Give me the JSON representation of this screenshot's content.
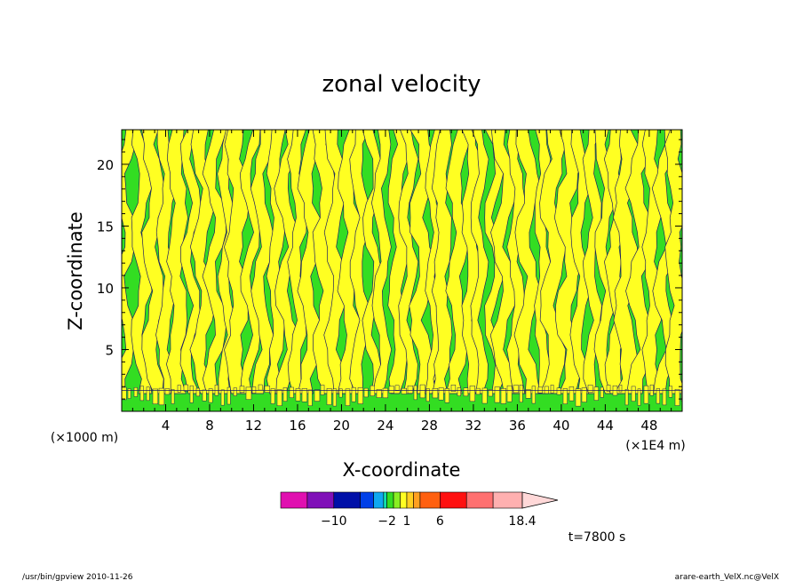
{
  "chart_data": {
    "type": "heatmap",
    "title": "zonal velocity",
    "xlabel": "X-coordinate",
    "ylabel": "Z-coordinate",
    "x_unit": "(×1E4 m)",
    "y_unit": "(×1000 m)",
    "xlim": [
      0,
      51
    ],
    "ylim": [
      0,
      22.8
    ],
    "x_ticks": [
      4,
      8,
      12,
      16,
      20,
      24,
      28,
      32,
      36,
      40,
      44,
      48
    ],
    "y_ticks": [
      5,
      10,
      15,
      20
    ],
    "dominant_fill_colors": [
      "#33dd22",
      "#ffff22"
    ],
    "colorbar": {
      "levels": [
        -18,
        -14,
        -10,
        -6,
        -4,
        -2.5,
        -2,
        -1,
        0,
        1,
        2,
        3,
        6,
        10,
        14,
        18.4
      ],
      "colors": [
        "#e010b0",
        "#8010b8",
        "#0010a8",
        "#0040e8",
        "#10a8f0",
        "#10e0b0",
        "#33dd22",
        "#88ee22",
        "#ffff22",
        "#ffd020",
        "#ffa020",
        "#ff6010",
        "#ff1010",
        "#ff7070",
        "#ffb0b0",
        "#ffd8d8"
      ],
      "tick_labels": [
        {
          "value": -10,
          "label": "−10"
        },
        {
          "value": -2,
          "label": "−2"
        },
        {
          "value": 1,
          "label": "1"
        },
        {
          "value": 6,
          "label": "6"
        },
        {
          "value": 18.4,
          "label": "18.4"
        }
      ]
    },
    "time_label": "t=7800 s"
  },
  "footer": {
    "left": "/usr/bin/gpview   2010-11-26",
    "right": "arare-earth_VelX.nc@VelX"
  }
}
